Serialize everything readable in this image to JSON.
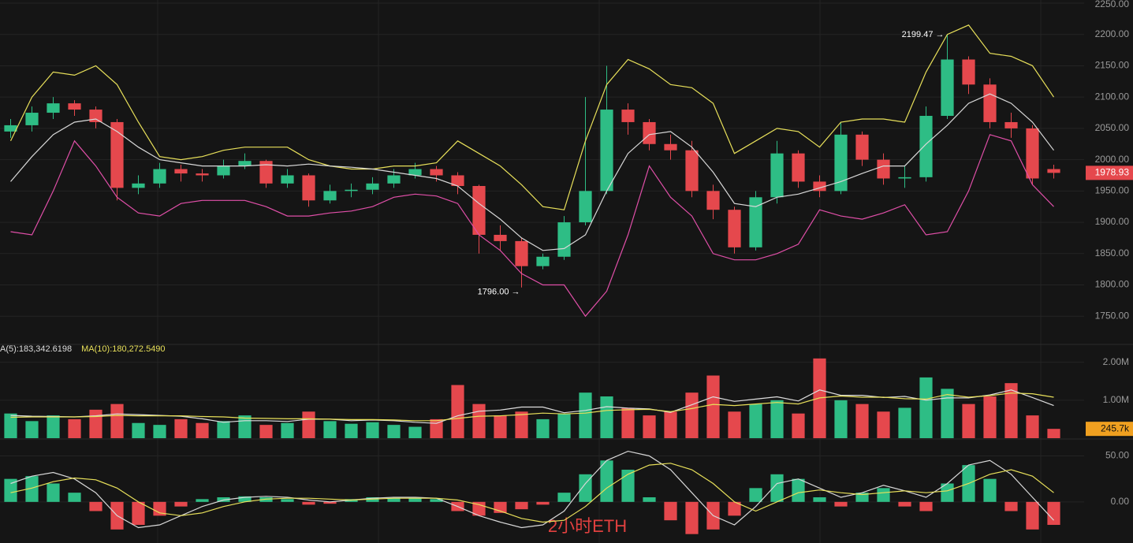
{
  "chart_data": [
    {
      "type": "candlestick",
      "open": [
        2045,
        2055,
        2075,
        2090,
        2080,
        2060,
        1955,
        1962,
        1985,
        1978,
        1975,
        1990,
        1998,
        1962,
        1975,
        1935,
        1950,
        1952,
        1962,
        1975,
        1985,
        1975,
        1958,
        1880,
        1870,
        1830,
        1845,
        1900,
        1950,
        2080,
        2060,
        2025,
        2015,
        1950,
        1920,
        1860,
        1940,
        2010,
        1965,
        1950,
        2040,
        2000,
        1970,
        1972,
        2070,
        2160,
        2120,
        2060,
        2050,
        1985
      ],
      "high": [
        2065,
        2085,
        2100,
        2095,
        2085,
        2065,
        1975,
        1995,
        1992,
        1985,
        2000,
        2010,
        2000,
        1985,
        1978,
        1960,
        1962,
        1972,
        1985,
        1995,
        1990,
        1980,
        1960,
        1895,
        1875,
        1850,
        1910,
        2100,
        2150,
        2090,
        2065,
        2040,
        2030,
        1960,
        1925,
        1950,
        2030,
        2015,
        1975,
        2060,
        2045,
        2010,
        1990,
        2085,
        2199.47,
        2165,
        2130,
        2075,
        2055,
        1992
      ],
      "low": [
        2035,
        2045,
        2065,
        2070,
        2050,
        1935,
        1945,
        1955,
        1965,
        1965,
        1970,
        1985,
        1955,
        1955,
        1925,
        1930,
        1940,
        1945,
        1955,
        1970,
        1965,
        1945,
        1850,
        1855,
        1796,
        1825,
        1840,
        1895,
        1945,
        2040,
        2015,
        2000,
        1940,
        1905,
        1850,
        1855,
        1930,
        1955,
        1940,
        1945,
        1990,
        1960,
        1955,
        1965,
        2065,
        2105,
        2050,
        2035,
        1960,
        1970
      ],
      "close": [
        2055,
        2075,
        2090,
        2080,
        2060,
        1955,
        1962,
        1985,
        1978,
        1975,
        1990,
        1998,
        1962,
        1975,
        1935,
        1950,
        1952,
        1962,
        1975,
        1985,
        1975,
        1958,
        1880,
        1870,
        1830,
        1845,
        1900,
        1950,
        2080,
        2060,
        2025,
        2015,
        1950,
        1920,
        1860,
        1940,
        2010,
        1965,
        1950,
        2040,
        2000,
        1970,
        1972,
        2070,
        2160,
        2120,
        2060,
        2050,
        1970,
        1978.93
      ],
      "up_color": "#2ebd85",
      "down_color": "#e5484d",
      "series": [
        {
          "color": "#e8e05a",
          "values": [
            2030,
            2100,
            2140,
            2135,
            2150,
            2120,
            2060,
            2005,
            2000,
            2005,
            2015,
            2020,
            2020,
            2020,
            2000,
            1990,
            1985,
            1985,
            1990,
            1990,
            1995,
            2030,
            2010,
            1990,
            1960,
            1925,
            1920,
            2030,
            2120,
            2160,
            2145,
            2120,
            2115,
            2090,
            2010,
            2030,
            2050,
            2045,
            2020,
            2060,
            2065,
            2065,
            2060,
            2140,
            2200,
            2215,
            2170,
            2165,
            2150,
            2100
          ]
        },
        {
          "color": "#d8d8d8",
          "values": [
            1965,
            2005,
            2040,
            2060,
            2065,
            2045,
            2020,
            2000,
            1995,
            1990,
            1990,
            1990,
            1992,
            1990,
            1993,
            1990,
            1988,
            1985,
            1980,
            1975,
            1970,
            1958,
            1930,
            1905,
            1875,
            1855,
            1858,
            1880,
            1950,
            2010,
            2040,
            2045,
            2020,
            1980,
            1930,
            1925,
            1940,
            1945,
            1955,
            1965,
            1978,
            1990,
            1990,
            2025,
            2055,
            2090,
            2105,
            2090,
            2060,
            2015
          ]
        },
        {
          "color": "#e04fa8",
          "values": [
            1885,
            1880,
            1950,
            2030,
            1990,
            1940,
            1915,
            1910,
            1930,
            1935,
            1935,
            1935,
            1925,
            1910,
            1910,
            1915,
            1918,
            1925,
            1940,
            1945,
            1942,
            1930,
            1880,
            1855,
            1818,
            1800,
            1800,
            1750,
            1790,
            1880,
            1990,
            1940,
            1910,
            1850,
            1840,
            1840,
            1850,
            1865,
            1920,
            1910,
            1905,
            1915,
            1928,
            1880,
            1885,
            1950,
            2040,
            2030,
            1960,
            1925
          ]
        }
      ],
      "annotations": [
        "2199.47 →",
        "1796.00 →"
      ],
      "last_price": {
        "value": 1978.93,
        "label": "1978.93"
      },
      "ylim": [
        1705,
        2250
      ],
      "yticks": [
        {
          "value": 1750,
          "label": "1750.00"
        },
        {
          "value": 1800,
          "label": "1800.00"
        },
        {
          "value": 1850,
          "label": "1850.00"
        },
        {
          "value": 1900,
          "label": "1900.00"
        },
        {
          "value": 1950,
          "label": "1950.00"
        },
        {
          "value": 2000,
          "label": "2000.00"
        },
        {
          "value": 2050,
          "label": "2050.00"
        },
        {
          "value": 2100,
          "label": "2100.00"
        },
        {
          "value": 2150,
          "label": "2150.00"
        },
        {
          "value": 2200,
          "label": "2200.00"
        },
        {
          "value": 2250,
          "label": "2250.00"
        }
      ],
      "grid": true
    },
    {
      "type": "bar",
      "values": [
        650000,
        450000,
        600000,
        500000,
        750000,
        900000,
        400000,
        350000,
        500000,
        400000,
        450000,
        600000,
        350000,
        400000,
        700000,
        450000,
        380000,
        420000,
        350000,
        300000,
        500000,
        1400000,
        900000,
        600000,
        700000,
        500000,
        650000,
        1200000,
        1100000,
        800000,
        600000,
        700000,
        1200000,
        1650000,
        700000,
        900000,
        1000000,
        650000,
        2100000,
        1000000,
        900000,
        700000,
        800000,
        1600000,
        1300000,
        900000,
        1100000,
        1450000,
        600000,
        245700
      ],
      "up_color": "#2ebd85",
      "down_color": "#e5484d",
      "legend": [
        {
          "label": "A(5):183,342.6198",
          "color": "#dddddd"
        },
        {
          "label": "MA(10):180,272.5490",
          "color": "#e8e05a"
        }
      ],
      "series": [
        {
          "color": "#dddddd",
          "values": [
            600000,
            580000,
            570000,
            560000,
            590000,
            640000,
            620000,
            600000,
            580000,
            510000,
            420000,
            460000,
            460000,
            440000,
            500000,
            500000,
            460000,
            480000,
            460000,
            420000,
            390000,
            590000,
            710000,
            740000,
            820000,
            820000,
            670000,
            730000,
            830000,
            790000,
            770000,
            680000,
            880000,
            1090000,
            970000,
            1030000,
            1090000,
            980000,
            1270000,
            1130000,
            1130000,
            1070000,
            1100000,
            1000000,
            1060000,
            1060000,
            1140000,
            1270000,
            1070000,
            860000
          ]
        },
        {
          "color": "#e8e05a",
          "values": [
            550000,
            560000,
            560000,
            560000,
            570000,
            600000,
            590000,
            590000,
            590000,
            570000,
            560000,
            530000,
            520000,
            510000,
            510000,
            500000,
            490000,
            490000,
            480000,
            460000,
            460000,
            520000,
            580000,
            590000,
            620000,
            660000,
            640000,
            660000,
            730000,
            750000,
            760000,
            700000,
            780000,
            890000,
            860000,
            900000,
            940000,
            900000,
            1060000,
            1110000,
            1080000,
            1080000,
            1040000,
            1030000,
            1150000,
            1080000,
            1120000,
            1190000,
            1170000,
            1080000
          ]
        }
      ],
      "last_value": {
        "value": 245700,
        "label": "245.7k"
      },
      "ylim": [
        0,
        2470000
      ],
      "yticks": [
        {
          "value": 1000000,
          "label": "1.00M"
        },
        {
          "value": 2000000,
          "label": "2.00M"
        }
      ]
    },
    {
      "type": "histogram",
      "values": [
        25,
        28,
        20,
        10,
        -10,
        -30,
        -25,
        -15,
        -5,
        3,
        5,
        6,
        5,
        3,
        -3,
        -2,
        3,
        5,
        4,
        4,
        3,
        -10,
        -15,
        -12,
        -8,
        -3,
        10,
        30,
        45,
        35,
        5,
        -20,
        -35,
        -30,
        -15,
        15,
        30,
        25,
        5,
        -5,
        10,
        15,
        -5,
        -10,
        20,
        40,
        25,
        -10,
        -30,
        -25
      ],
      "up_color": "#2ebd85",
      "down_color": "#e5484d",
      "series": [
        {
          "color": "#d8d8d8",
          "values": [
            20,
            28,
            32,
            25,
            10,
            -15,
            -28,
            -25,
            -15,
            -5,
            2,
            5,
            6,
            5,
            2,
            0,
            2,
            4,
            5,
            5,
            4,
            -5,
            -15,
            -22,
            -28,
            -25,
            -10,
            20,
            45,
            55,
            50,
            35,
            10,
            -15,
            -25,
            -5,
            20,
            25,
            15,
            5,
            10,
            18,
            12,
            5,
            20,
            40,
            45,
            30,
            5,
            -20
          ]
        },
        {
          "color": "#e8e05a",
          "values": [
            10,
            15,
            22,
            26,
            24,
            15,
            0,
            -12,
            -15,
            -12,
            -5,
            0,
            3,
            4,
            4,
            3,
            2,
            3,
            4,
            4,
            4,
            2,
            -3,
            -10,
            -18,
            -22,
            -20,
            -5,
            15,
            30,
            40,
            42,
            35,
            20,
            0,
            -10,
            0,
            10,
            13,
            10,
            8,
            10,
            12,
            10,
            12,
            20,
            30,
            35,
            28,
            10
          ]
        }
      ],
      "ylim": [
        -44.7,
        68.4
      ],
      "yticks": [
        {
          "value": 0,
          "label": "0.00"
        },
        {
          "value": 50,
          "label": "50.00"
        }
      ]
    }
  ],
  "watermark": "2小时ETH"
}
